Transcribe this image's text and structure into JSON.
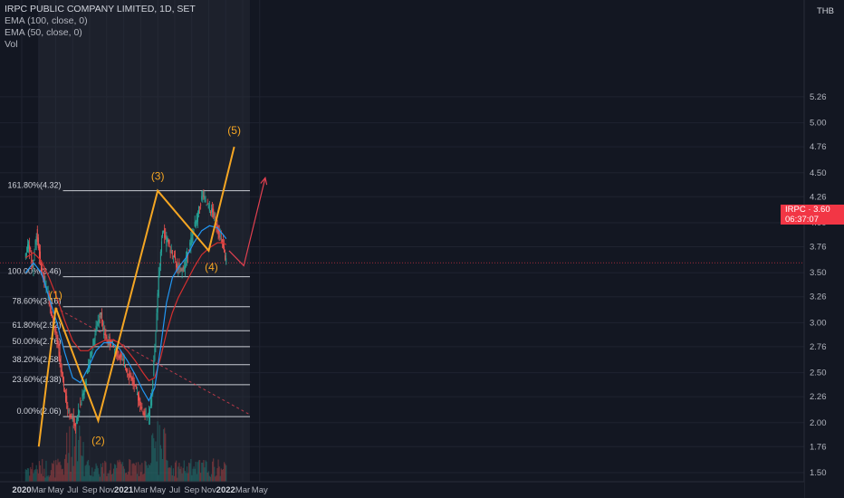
{
  "legend": {
    "title": "IRPC PUBLIC COMPANY LIMITED, 1D, SET",
    "ema100": "EMA (100, close, 0)",
    "ema50": "EMA (50, close, 0)",
    "vol": "Vol"
  },
  "price_axis": {
    "currency": "THB"
  },
  "price_tag": {
    "symbol_price": "IRPC · 3.60",
    "countdown": "06:37:07"
  },
  "colors": {
    "background": "#131722",
    "wave": "#f5a623",
    "fib_line": "#c9ccd3",
    "ema50": "#2196f3",
    "ema100": "#d32f2f",
    "candle_up": "#26a69a",
    "candle_down": "#ef5350",
    "projection": "#e04050",
    "price_line": "#f23645"
  },
  "chart_data": {
    "type": "candlestick",
    "title": "IRPC PUBLIC COMPANY LIMITED, 1D, SET",
    "y_ticks": [
      1.5,
      1.76,
      2.0,
      2.26,
      2.5,
      2.76,
      3.0,
      3.26,
      3.5,
      3.76,
      4.0,
      4.26,
      4.5,
      4.76,
      5.0,
      5.26
    ],
    "ylim": [
      1.5,
      5.26
    ],
    "x_labels": [
      "2020",
      "Mar",
      "May",
      "Jul",
      "Sep",
      "Nov",
      "2021",
      "Mar",
      "May",
      "Jul",
      "Sep",
      "Nov",
      "2022",
      "Mar",
      "May"
    ],
    "last_price": 3.6,
    "fib_levels": [
      {
        "label": "161.80%(4.32)",
        "price": 4.32
      },
      {
        "label": "100.00%(3.46)",
        "price": 3.46
      },
      {
        "label": "78.60%(3.16)",
        "price": 3.16
      },
      {
        "label": "61.80%(2.92)",
        "price": 2.92
      },
      {
        "label": "50.00%(2.76)",
        "price": 2.76
      },
      {
        "label": "38.20%(2.58)",
        "price": 2.58
      },
      {
        "label": "23.60%(2.38)",
        "price": 2.38
      },
      {
        "label": "0.00%(2.06)",
        "price": 2.06
      }
    ],
    "wave_points": [
      {
        "label": "",
        "date": "2020-03",
        "price": 1.76
      },
      {
        "label": "(1)",
        "date": "2020-05",
        "price": 3.15
      },
      {
        "label": "(2)",
        "date": "2020-10",
        "price": 2.02
      },
      {
        "label": "(3)",
        "date": "2021-05",
        "price": 4.32
      },
      {
        "label": "(4)",
        "date": "2021-11",
        "price": 3.72
      },
      {
        "label": "(5)",
        "date": "2022-02",
        "price": 4.76
      }
    ],
    "price_path": [
      [
        2.0,
        3.65
      ],
      [
        4,
        3.8
      ],
      [
        5,
        3.7
      ],
      [
        6,
        3.55
      ],
      [
        8,
        3.9
      ],
      [
        10,
        3.6
      ],
      [
        12,
        3.4
      ],
      [
        14,
        3.3
      ],
      [
        16,
        3.05
      ],
      [
        18,
        2.9
      ],
      [
        20,
        2.6
      ],
      [
        22,
        2.35
      ],
      [
        24,
        2.15
      ],
      [
        26,
        2.05
      ],
      [
        28,
        1.98
      ],
      [
        30,
        2.15
      ],
      [
        32,
        2.3
      ],
      [
        34,
        2.5
      ],
      [
        36,
        2.7
      ],
      [
        38,
        2.9
      ],
      [
        40,
        3.05
      ],
      [
        41,
        3.12
      ],
      [
        42,
        2.95
      ],
      [
        43.5,
        2.85
      ],
      [
        45,
        2.8
      ],
      [
        47,
        2.78
      ],
      [
        49,
        2.7
      ],
      [
        51,
        2.65
      ],
      [
        53,
        2.58
      ],
      [
        55,
        2.5
      ],
      [
        57,
        2.42
      ],
      [
        59,
        2.3
      ],
      [
        61,
        2.2
      ],
      [
        62,
        2.12
      ],
      [
        63,
        2.08
      ],
      [
        64,
        2.1
      ],
      [
        65,
        2.05
      ],
      [
        66,
        2.12
      ],
      [
        67,
        2.3
      ],
      [
        68,
        2.6
      ],
      [
        69,
        2.9
      ],
      [
        70,
        3.3
      ],
      [
        71,
        3.6
      ],
      [
        72,
        3.85
      ],
      [
        73,
        3.95
      ],
      [
        74,
        3.8
      ],
      [
        75,
        3.85
      ],
      [
        76,
        3.75
      ],
      [
        78,
        3.65
      ],
      [
        80,
        3.55
      ],
      [
        82,
        3.5
      ],
      [
        84,
        3.6
      ],
      [
        86,
        3.75
      ],
      [
        88,
        3.9
      ],
      [
        90,
        4.05
      ],
      [
        92,
        4.2
      ],
      [
        93,
        4.3
      ],
      [
        94,
        4.22
      ],
      [
        96,
        4.15
      ],
      [
        98,
        4.1
      ],
      [
        100,
        4.0
      ],
      [
        102,
        3.85
      ],
      [
        103.5,
        3.75
      ],
      [
        104.5,
        3.62
      ]
    ],
    "ema50": [
      [
        2.0,
        3.5
      ],
      [
        6,
        3.6
      ],
      [
        10,
        3.5
      ],
      [
        14,
        3.25
      ],
      [
        18,
        3.0
      ],
      [
        22,
        2.7
      ],
      [
        26,
        2.45
      ],
      [
        30,
        2.4
      ],
      [
        34,
        2.55
      ],
      [
        38,
        2.72
      ],
      [
        42,
        2.8
      ],
      [
        46,
        2.8
      ],
      [
        50,
        2.74
      ],
      [
        54,
        2.62
      ],
      [
        58,
        2.48
      ],
      [
        62,
        2.32
      ],
      [
        65,
        2.22
      ],
      [
        68,
        2.35
      ],
      [
        71,
        2.75
      ],
      [
        74,
        3.2
      ],
      [
        77,
        3.45
      ],
      [
        80,
        3.55
      ],
      [
        84,
        3.65
      ],
      [
        88,
        3.8
      ],
      [
        92,
        3.92
      ],
      [
        96,
        3.97
      ],
      [
        100,
        3.95
      ],
      [
        103,
        3.88
      ],
      [
        104.5,
        3.84
      ]
    ],
    "ema100": [
      [
        2.0,
        3.65
      ],
      [
        6,
        3.7
      ],
      [
        10,
        3.62
      ],
      [
        14,
        3.45
      ],
      [
        18,
        3.25
      ],
      [
        22,
        3.02
      ],
      [
        26,
        2.82
      ],
      [
        30,
        2.72
      ],
      [
        34,
        2.72
      ],
      [
        38,
        2.78
      ],
      [
        42,
        2.82
      ],
      [
        46,
        2.83
      ],
      [
        50,
        2.8
      ],
      [
        54,
        2.72
      ],
      [
        58,
        2.62
      ],
      [
        62,
        2.5
      ],
      [
        65,
        2.42
      ],
      [
        68,
        2.45
      ],
      [
        71,
        2.65
      ],
      [
        74,
        2.9
      ],
      [
        77,
        3.1
      ],
      [
        80,
        3.25
      ],
      [
        84,
        3.4
      ],
      [
        88,
        3.55
      ],
      [
        92,
        3.68
      ],
      [
        96,
        3.75
      ],
      [
        100,
        3.8
      ],
      [
        103,
        3.8
      ],
      [
        104.5,
        3.78
      ]
    ],
    "projection": [
      [
        106,
        3.72
      ],
      [
        113.5,
        3.57
      ],
      [
        124.5,
        4.45
      ]
    ],
    "dashed_trend": {
      "from": {
        "date": "2020-05",
        "price": 3.15
      },
      "to": {
        "date": "2022-03",
        "price": 2.08
      }
    }
  }
}
